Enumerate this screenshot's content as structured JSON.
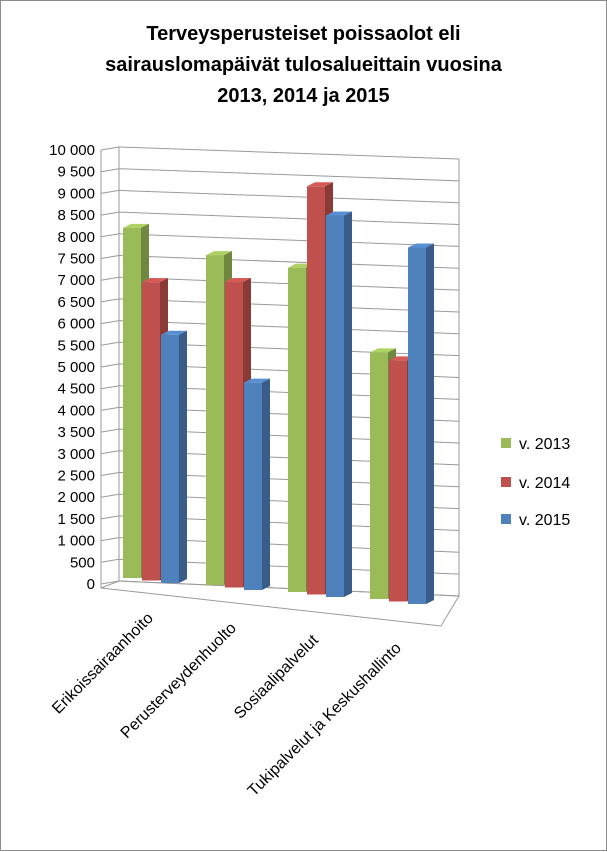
{
  "chart_data": {
    "type": "bar",
    "title_lines": [
      "Terveysperusteiset poissaolot eli",
      "sairauslomapäivät  tulosalueittain  vuosina",
      "2013, 2014 ja 2015"
    ],
    "categories": [
      "Erikoissairaanhoito",
      "Perusterveydenhuolto",
      "Sosiaalipalvelut",
      "Tukipalvelut ja Keskushallinto"
    ],
    "series": [
      {
        "name": "v. 2013",
        "color": "#9bbb59",
        "values": [
          8250,
          7700,
          7500,
          5650
        ]
      },
      {
        "name": "v. 2014",
        "color": "#c0504d",
        "values": [
          7000,
          7100,
          9400,
          5500
        ]
      },
      {
        "name": "v. 2015",
        "color": "#4f81bd",
        "values": [
          5800,
          4800,
          8750,
          8100
        ]
      }
    ],
    "yticks": [
      "0",
      "500",
      "1 000",
      "1 500",
      "2 000",
      "2 500",
      "3 000",
      "3 500",
      "4 000",
      "4 500",
      "5 000",
      "5 500",
      "6 000",
      "6 500",
      "7 000",
      "7 500",
      "8 000",
      "8 500",
      "9 000",
      "9 500",
      "10 000"
    ],
    "ylim": [
      0,
      10000
    ],
    "legend_position": "right",
    "grid": true,
    "style": "3d-clustered-column"
  }
}
